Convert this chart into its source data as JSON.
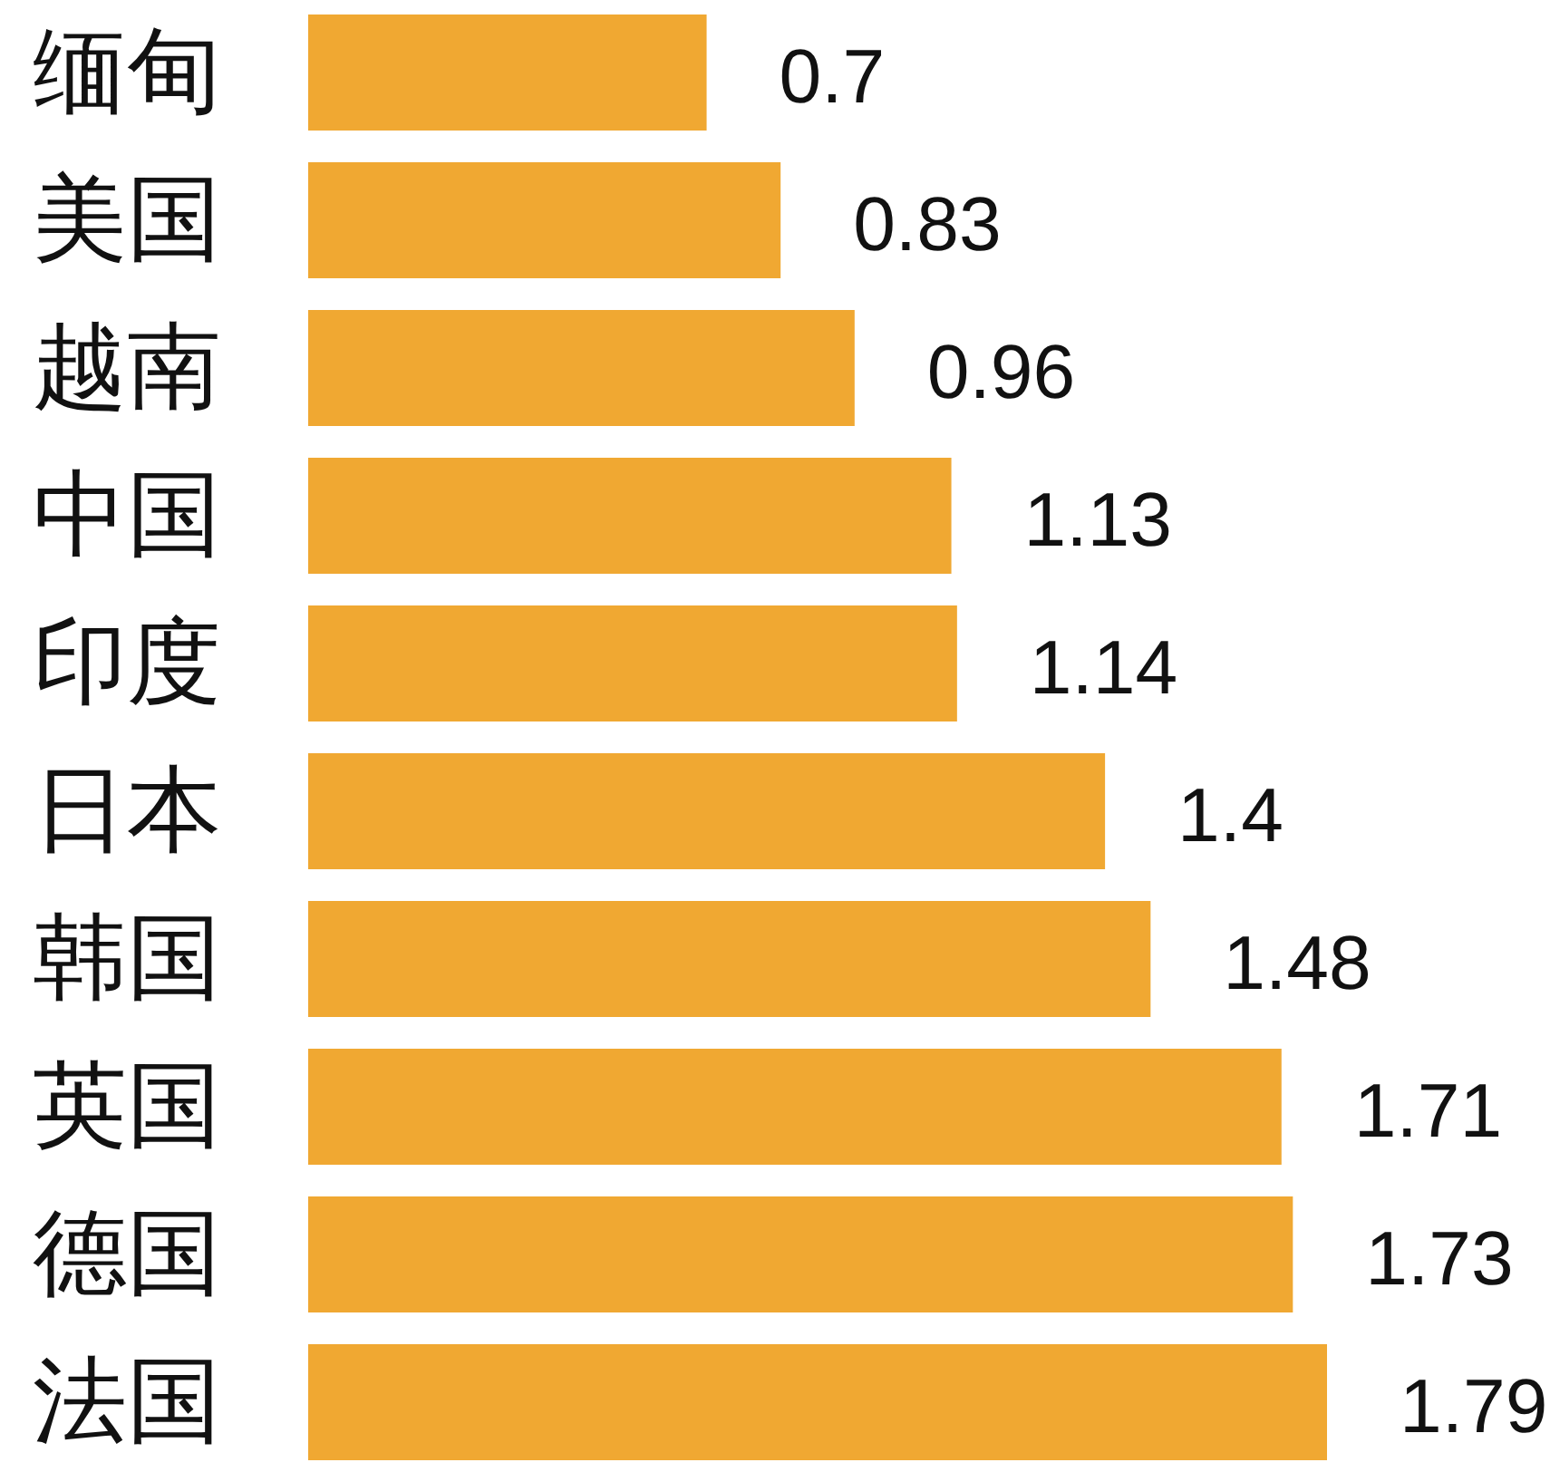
{
  "chart_data": {
    "type": "bar",
    "orientation": "horizontal",
    "categories": [
      "缅甸",
      "美国",
      "越南",
      "中国",
      "印度",
      "日本",
      "韩国",
      "英国",
      "德国",
      "法国"
    ],
    "values": [
      0.7,
      0.83,
      0.96,
      1.13,
      1.14,
      1.4,
      1.48,
      1.71,
      1.73,
      1.79
    ],
    "color": "#f0a832",
    "data_labels": true
  }
}
